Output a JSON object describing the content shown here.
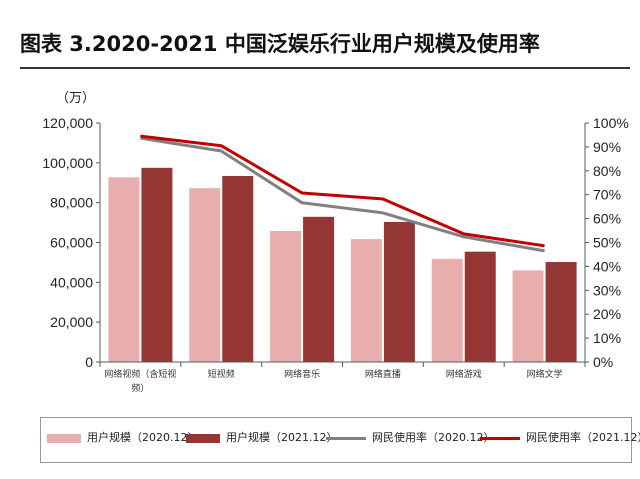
{
  "title": "图表 3.2020-2021 中国泛娱乐行业用户规模及使用率",
  "colors": {
    "bar_2020": "#E8AEAD",
    "bar_2021": "#943634",
    "line_2020": "#808080",
    "line_2021": "#C00000",
    "axis": "#595959"
  },
  "chart_data": {
    "type": "bar",
    "categories": [
      "网络视频（含短视频）",
      "短视频",
      "网络音乐",
      "网络直播",
      "网络游戏",
      "网络文学"
    ],
    "category_lines": [
      [
        "网络视频（含短视",
        "频）"
      ],
      [
        "短视频"
      ],
      [
        "网络音乐"
      ],
      [
        "网络直播"
      ],
      [
        "网络游戏"
      ],
      [
        "网络文学"
      ]
    ],
    "series": [
      {
        "name": "用户规模（2020.12）",
        "kind": "bar",
        "axis": "left",
        "values": [
          92700,
          87300,
          65800,
          61700,
          51800,
          46000
        ]
      },
      {
        "name": "用户规模（2021.12）",
        "kind": "bar",
        "axis": "left",
        "values": [
          97500,
          93400,
          72900,
          70300,
          55400,
          50200
        ]
      },
      {
        "name": "网民使用率（2020.12）",
        "kind": "line",
        "axis": "right",
        "values": [
          93.7,
          88.3,
          66.6,
          62.4,
          52.4,
          46.5
        ]
      },
      {
        "name": "网民使用率（2021.12）",
        "kind": "line",
        "axis": "right",
        "values": [
          94.5,
          90.5,
          70.7,
          68.2,
          53.6,
          48.6
        ]
      }
    ],
    "y_unit_label": "（万）",
    "ylim": [
      0,
      120000
    ],
    "yticks": [
      "0",
      "20,000",
      "40,000",
      "60,000",
      "80,000",
      "100,000",
      "120,000"
    ],
    "y2lim": [
      0,
      100
    ],
    "y2ticks": [
      "0%",
      "10%",
      "20%",
      "30%",
      "40%",
      "50%",
      "60%",
      "70%",
      "80%",
      "90%",
      "100%"
    ],
    "legend_position": "bottom"
  }
}
